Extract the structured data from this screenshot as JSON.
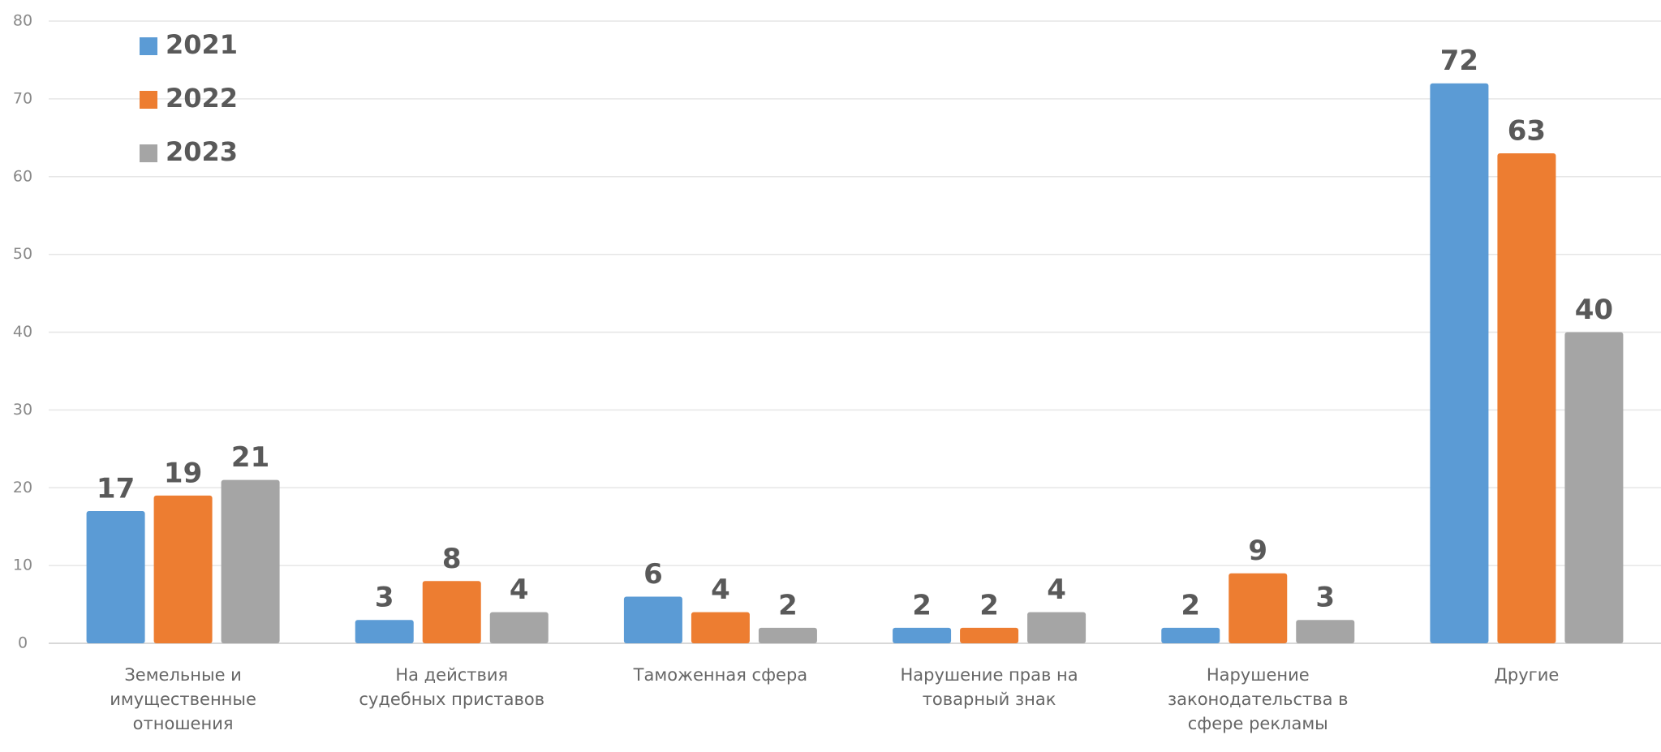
{
  "chart_data": {
    "type": "bar",
    "categories": [
      "Земельные и имущественные отношения",
      "На действия судебных приставов",
      "Таможенная сфера",
      "Нарушение прав на товарный знак",
      "Нарушение законодательства в сфере рекламы",
      "Другие"
    ],
    "series": [
      {
        "name": "2021",
        "color": "#5b9bd5",
        "values": [
          17,
          3,
          6,
          2,
          2,
          72
        ]
      },
      {
        "name": "2022",
        "color": "#ed7d31",
        "values": [
          19,
          8,
          4,
          2,
          9,
          63
        ]
      },
      {
        "name": "2023",
        "color": "#a5a5a5",
        "values": [
          21,
          4,
          2,
          4,
          3,
          40
        ]
      }
    ],
    "ylim": [
      0,
      80
    ],
    "yticks": [
      0,
      10,
      20,
      30,
      40,
      50,
      60,
      70,
      80
    ],
    "grid": true,
    "legend": "top-left"
  }
}
